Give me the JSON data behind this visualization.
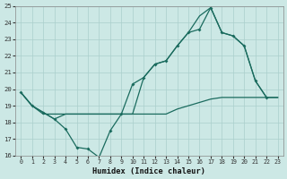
{
  "xlabel": "Humidex (Indice chaleur)",
  "xlim": [
    -0.5,
    23.5
  ],
  "ylim": [
    16,
    25
  ],
  "yticks": [
    16,
    17,
    18,
    19,
    20,
    21,
    22,
    23,
    24,
    25
  ],
  "xticks": [
    0,
    1,
    2,
    3,
    4,
    5,
    6,
    7,
    8,
    9,
    10,
    11,
    12,
    13,
    14,
    15,
    16,
    17,
    18,
    19,
    20,
    21,
    22,
    23
  ],
  "bg_color": "#cce8e5",
  "grid_color": "#aacfcc",
  "line_color": "#1a6b5e",
  "line1_y": [
    19.8,
    19.0,
    18.6,
    18.2,
    17.6,
    16.5,
    16.4,
    15.9,
    17.5,
    18.5,
    20.3,
    20.7,
    21.5,
    21.7,
    22.6,
    23.4,
    23.6,
    24.9,
    23.4,
    23.2,
    22.6,
    20.5,
    19.5,
    null
  ],
  "line2_y": [
    19.8,
    19.0,
    18.6,
    18.2,
    18.5,
    18.5,
    18.5,
    18.5,
    18.5,
    18.5,
    18.5,
    20.7,
    21.5,
    21.7,
    22.6,
    23.4,
    24.4,
    24.9,
    23.4,
    23.2,
    22.6,
    20.5,
    19.5,
    19.5
  ],
  "line3_y": [
    19.8,
    19.0,
    18.5,
    18.5,
    18.5,
    18.5,
    18.5,
    18.5,
    18.5,
    18.5,
    18.5,
    18.5,
    18.5,
    18.5,
    18.8,
    19.0,
    19.2,
    19.4,
    19.5,
    19.5,
    19.5,
    19.5,
    19.5,
    19.5
  ]
}
